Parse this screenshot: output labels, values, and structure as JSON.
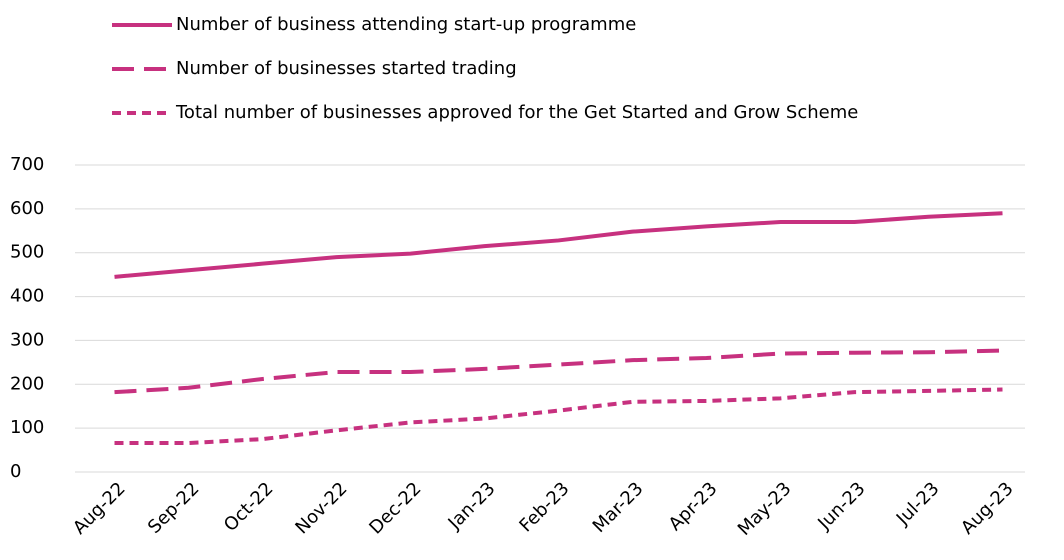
{
  "chart_data": {
    "type": "line",
    "categories": [
      "Aug-22",
      "Sep-22",
      "Oct-22",
      "Nov-22",
      "Dec-22",
      "Jan-23",
      "Feb-23",
      "Mar-23",
      "Apr-23",
      "May-23",
      "Jun-23",
      "Jul-23",
      "Aug-23"
    ],
    "series": [
      {
        "name": "Number of business attending start-up programme",
        "color": "#c7317f",
        "dash": "solid",
        "values": [
          445,
          460,
          475,
          490,
          498,
          515,
          528,
          548,
          560,
          570,
          570,
          582,
          590
        ]
      },
      {
        "name": "Number of businesses started trading",
        "color": "#c7317f",
        "dash": "long",
        "values": [
          182,
          192,
          212,
          228,
          228,
          235,
          245,
          255,
          260,
          270,
          272,
          273,
          277
        ]
      },
      {
        "name": "Total number of businesses approved for the Get Started and Grow Scheme",
        "color": "#c7317f",
        "dash": "short",
        "values": [
          66,
          66,
          75,
          95,
          113,
          122,
          140,
          160,
          162,
          168,
          182,
          185,
          188
        ]
      }
    ],
    "ylim": [
      0,
      700
    ],
    "yticks": [
      0,
      100,
      200,
      300,
      400,
      500,
      600,
      700
    ],
    "grid": true
  }
}
